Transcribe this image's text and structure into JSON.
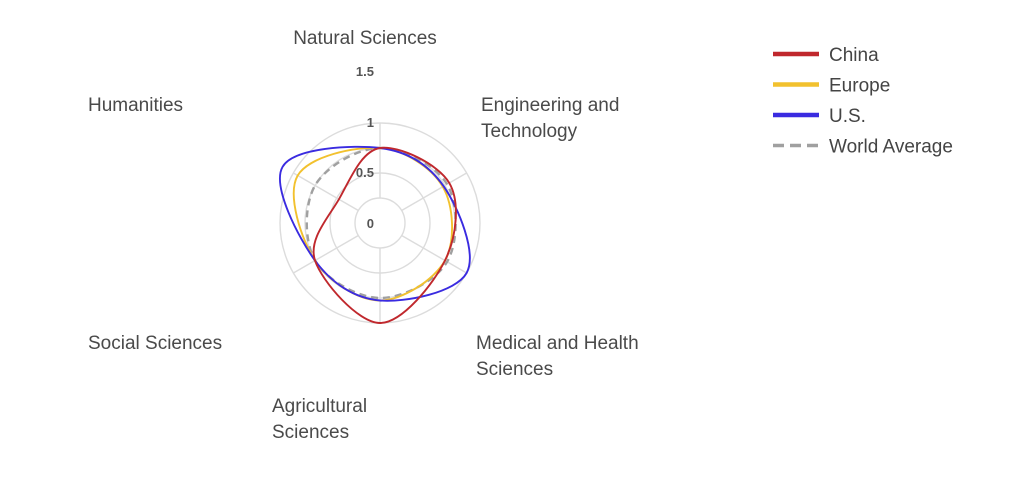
{
  "chart_data": {
    "type": "radar",
    "title": "",
    "axes": [
      "Natural Sciences",
      "Engineering and Technology",
      "Medical and Health Sciences",
      "Agricultural Sciences",
      "Social Sciences",
      "Humanities"
    ],
    "axis_label_lines": [
      [
        "Natural Sciences"
      ],
      [
        "Engineering and",
        "Technology"
      ],
      [
        "Medical and Health",
        "Sciences"
      ],
      [
        "Agricultural",
        "Sciences"
      ],
      [
        "Social Sciences"
      ],
      [
        "Humanities"
      ]
    ],
    "radial_ticks": [
      "0",
      "0.5",
      "1",
      "1.5"
    ],
    "rlim": [
      0,
      1.5
    ],
    "radial_offset": 0.5,
    "grid": true,
    "legend_position": "top-right",
    "series": [
      {
        "name": "China",
        "color": "#c0282d",
        "style": "solid",
        "values": [
          1.0,
          1.1,
          1.0,
          1.5,
          1.0,
          0.45
        ]
      },
      {
        "name": "Europe",
        "color": "#f2c12e",
        "style": "solid",
        "values": [
          1.0,
          0.95,
          1.0,
          1.05,
          1.0,
          1.4
        ]
      },
      {
        "name": "U.S.",
        "color": "#3a2be0",
        "style": "solid",
        "values": [
          1.0,
          0.97,
          1.5,
          1.05,
          1.0,
          1.75
        ]
      },
      {
        "name": "World Average",
        "color": "#a0a0a0",
        "style": "dashed",
        "values": [
          1.0,
          1.05,
          1.05,
          1.0,
          1.0,
          1.0
        ]
      }
    ]
  }
}
